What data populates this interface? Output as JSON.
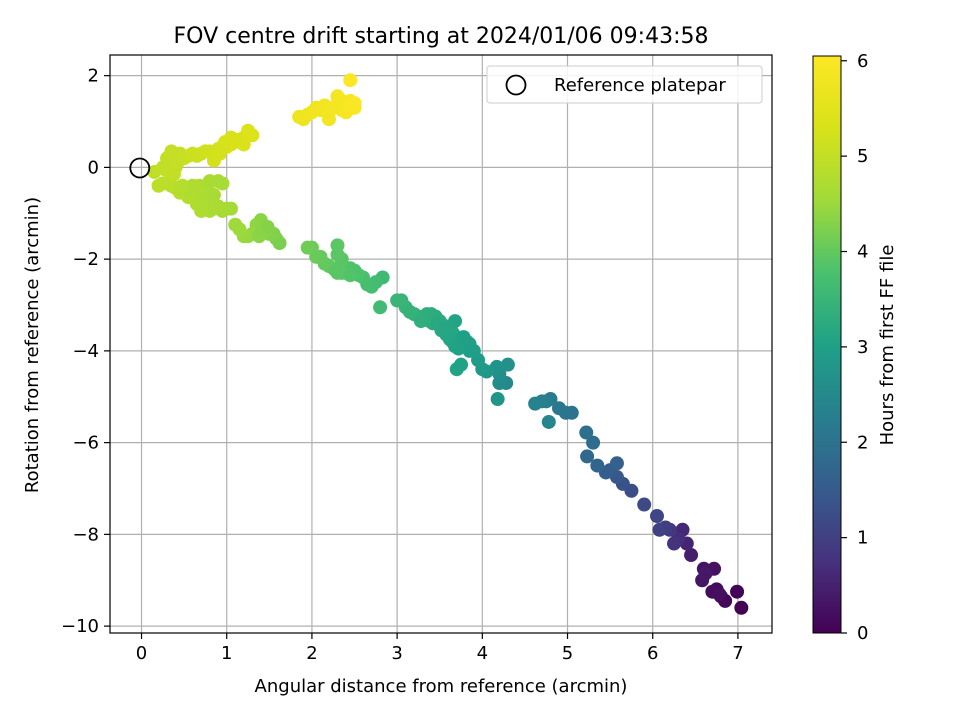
{
  "chart_data": {
    "type": "scatter",
    "title": "FOV centre drift starting at 2024/01/06 09:43:58",
    "xlabel": "Angular distance from reference (arcmin)",
    "ylabel": "Rotation from reference (arcmin)",
    "xlim": [
      -0.37,
      7.4
    ],
    "ylim": [
      -10.15,
      2.45
    ],
    "xticks": [
      0,
      1,
      2,
      3,
      4,
      5,
      6,
      7
    ],
    "yticks": [
      -10,
      -8,
      -6,
      -4,
      -2,
      0,
      2
    ],
    "xtick_labels": [
      "0",
      "1",
      "2",
      "3",
      "4",
      "5",
      "6",
      "7"
    ],
    "ytick_labels": [
      "−10",
      "−8",
      "−6",
      "−4",
      "−2",
      "0",
      "2"
    ],
    "grid": true,
    "colormap": "viridis",
    "colorbar": {
      "label": "Hours from first FF file",
      "range": [
        0,
        6.05
      ],
      "ticks": [
        0,
        1,
        2,
        3,
        4,
        5,
        6
      ],
      "tick_labels": [
        "0",
        "1",
        "2",
        "3",
        "4",
        "5",
        "6"
      ]
    },
    "legend": {
      "placement": "top-right",
      "entries": [
        {
          "label": "Reference platepar",
          "marker": "open-circle"
        }
      ]
    },
    "reference_point": {
      "x": 0,
      "y": 0
    },
    "series": [
      {
        "columns": [
          "x",
          "y",
          "hours"
        ],
        "points": [
          [
            7.04,
            -9.6,
            0.02
          ],
          [
            6.99,
            -9.25,
            0.05
          ],
          [
            6.85,
            -9.45,
            0.08
          ],
          [
            6.8,
            -9.35,
            0.11
          ],
          [
            6.75,
            -9.2,
            0.14
          ],
          [
            6.7,
            -9.25,
            0.17
          ],
          [
            6.78,
            -9.3,
            0.2
          ],
          [
            6.72,
            -8.75,
            0.24
          ],
          [
            6.6,
            -8.75,
            0.28
          ],
          [
            6.58,
            -9.0,
            0.32
          ],
          [
            6.62,
            -8.85,
            0.36
          ],
          [
            6.45,
            -8.45,
            0.45
          ],
          [
            6.4,
            -8.2,
            0.55
          ],
          [
            6.35,
            -7.9,
            0.62
          ],
          [
            6.3,
            -8.1,
            0.7
          ],
          [
            6.25,
            -8.2,
            0.78
          ],
          [
            6.2,
            -7.9,
            0.86
          ],
          [
            6.15,
            -7.85,
            0.95
          ],
          [
            6.08,
            -7.9,
            1.02
          ],
          [
            6.05,
            -7.6,
            1.1
          ],
          [
            5.9,
            -7.35,
            1.18
          ],
          [
            5.75,
            -7.05,
            1.26
          ],
          [
            5.65,
            -6.9,
            1.34
          ],
          [
            5.58,
            -6.75,
            1.42
          ],
          [
            5.5,
            -6.6,
            1.5
          ],
          [
            5.45,
            -6.65,
            1.56
          ],
          [
            5.58,
            -6.45,
            1.62
          ],
          [
            5.35,
            -6.5,
            1.7
          ],
          [
            5.23,
            -6.3,
            1.78
          ],
          [
            5.3,
            -6.0,
            1.85
          ],
          [
            5.22,
            -5.78,
            1.92
          ],
          [
            5.05,
            -5.35,
            2.0
          ],
          [
            4.98,
            -5.35,
            2.05
          ],
          [
            4.9,
            -5.25,
            2.1
          ],
          [
            4.8,
            -5.05,
            2.16
          ],
          [
            4.75,
            -5.1,
            2.22
          ],
          [
            4.7,
            -5.1,
            2.28
          ],
          [
            4.62,
            -5.15,
            2.34
          ],
          [
            4.78,
            -5.55,
            2.4
          ],
          [
            4.28,
            -4.7,
            2.48
          ],
          [
            4.2,
            -4.7,
            2.55
          ],
          [
            4.2,
            -4.5,
            2.62
          ],
          [
            4.3,
            -4.3,
            2.68
          ],
          [
            4.17,
            -4.35,
            2.72
          ],
          [
            4.18,
            -5.05,
            2.76
          ],
          [
            4.05,
            -4.45,
            2.8
          ],
          [
            4.0,
            -4.4,
            2.85
          ],
          [
            3.95,
            -4.2,
            2.9
          ],
          [
            3.9,
            -4.0,
            2.95
          ],
          [
            3.85,
            -3.85,
            3.0
          ],
          [
            3.8,
            -3.8,
            3.03
          ],
          [
            3.75,
            -3.75,
            3.06
          ],
          [
            3.7,
            -3.7,
            3.09
          ],
          [
            3.65,
            -3.6,
            3.12
          ],
          [
            3.6,
            -3.5,
            3.15
          ],
          [
            3.55,
            -3.45,
            3.18
          ],
          [
            3.5,
            -3.35,
            3.21
          ],
          [
            3.45,
            -3.25,
            3.24
          ],
          [
            3.4,
            -3.2,
            3.27
          ],
          [
            3.35,
            -3.2,
            3.3
          ],
          [
            3.3,
            -3.3,
            3.33
          ],
          [
            3.25,
            -3.25,
            3.36
          ],
          [
            3.2,
            -3.2,
            3.39
          ],
          [
            3.15,
            -3.15,
            3.42
          ],
          [
            3.1,
            -3.05,
            3.45
          ],
          [
            3.05,
            -2.9,
            3.48
          ],
          [
            3.0,
            -2.9,
            3.5
          ],
          [
            3.7,
            -4.4,
            3.08
          ],
          [
            3.75,
            -4.3,
            3.05
          ],
          [
            3.85,
            -4.0,
            2.97
          ],
          [
            3.65,
            -3.8,
            3.1
          ],
          [
            3.58,
            -3.65,
            3.13
          ],
          [
            3.52,
            -3.55,
            3.16
          ],
          [
            3.42,
            -3.4,
            3.22
          ],
          [
            3.38,
            -3.35,
            3.26
          ],
          [
            3.32,
            -3.3,
            3.3
          ],
          [
            3.28,
            -3.35,
            3.34
          ],
          [
            3.48,
            -3.4,
            3.2
          ],
          [
            3.62,
            -3.75,
            3.11
          ],
          [
            3.68,
            -3.9,
            3.07
          ],
          [
            3.72,
            -3.95,
            3.04
          ],
          [
            3.78,
            -3.7,
            3.02
          ],
          [
            3.82,
            -3.8,
            3.0
          ],
          [
            3.68,
            -3.35,
            3.1
          ],
          [
            3.56,
            -3.5,
            3.14
          ],
          [
            2.83,
            -2.4,
            3.6
          ],
          [
            2.8,
            -3.05,
            3.62
          ],
          [
            2.75,
            -2.5,
            3.65
          ],
          [
            2.7,
            -2.6,
            3.68
          ],
          [
            2.65,
            -2.55,
            3.71
          ],
          [
            2.6,
            -2.4,
            3.74
          ],
          [
            2.55,
            -2.35,
            3.77
          ],
          [
            2.5,
            -2.3,
            3.8
          ],
          [
            2.45,
            -2.2,
            3.83
          ],
          [
            2.4,
            -2.3,
            3.86
          ],
          [
            2.35,
            -2.3,
            3.89
          ],
          [
            2.3,
            -2.3,
            3.92
          ],
          [
            2.25,
            -2.2,
            3.95
          ],
          [
            2.2,
            -2.15,
            3.98
          ],
          [
            2.35,
            -2.0,
            3.9
          ],
          [
            2.3,
            -1.9,
            3.93
          ],
          [
            2.3,
            -1.7,
            3.94
          ],
          [
            2.15,
            -2.1,
            3.99
          ],
          [
            2.1,
            -1.95,
            4.02
          ],
          [
            2.05,
            -1.95,
            4.05
          ],
          [
            2.0,
            -1.75,
            4.08
          ],
          [
            1.95,
            -1.75,
            4.1
          ],
          [
            2.5,
            -2.25,
            3.82
          ],
          [
            2.45,
            -2.35,
            3.84
          ],
          [
            2.28,
            -2.25,
            3.91
          ],
          [
            1.62,
            -1.65,
            4.2
          ],
          [
            1.58,
            -1.55,
            4.23
          ],
          [
            1.55,
            -1.45,
            4.26
          ],
          [
            1.5,
            -1.45,
            4.29
          ],
          [
            1.45,
            -1.35,
            4.32
          ],
          [
            1.4,
            -1.15,
            4.35
          ],
          [
            1.35,
            -1.25,
            4.38
          ],
          [
            1.3,
            -1.45,
            4.41
          ],
          [
            1.25,
            -1.5,
            4.44
          ],
          [
            1.2,
            -1.5,
            4.47
          ],
          [
            1.15,
            -1.35,
            4.5
          ],
          [
            1.1,
            -1.25,
            4.53
          ],
          [
            1.38,
            -1.5,
            4.36
          ],
          [
            1.42,
            -1.4,
            4.34
          ],
          [
            1.48,
            -1.3,
            4.3
          ],
          [
            1.05,
            -0.9,
            4.58
          ],
          [
            1.0,
            -0.9,
            4.6
          ],
          [
            0.95,
            -0.95,
            4.62
          ],
          [
            0.9,
            -0.85,
            4.64
          ],
          [
            0.85,
            -0.9,
            4.66
          ],
          [
            0.8,
            -0.95,
            4.68
          ],
          [
            0.75,
            -0.85,
            4.7
          ],
          [
            0.7,
            -0.95,
            4.72
          ],
          [
            0.65,
            -0.8,
            4.74
          ],
          [
            0.6,
            -0.65,
            4.76
          ],
          [
            0.55,
            -0.65,
            4.78
          ],
          [
            0.5,
            -0.55,
            4.8
          ],
          [
            0.45,
            -0.55,
            4.82
          ],
          [
            0.4,
            -0.45,
            4.84
          ],
          [
            0.35,
            -0.4,
            4.86
          ],
          [
            0.3,
            -0.35,
            4.88
          ],
          [
            0.25,
            -0.35,
            4.9
          ],
          [
            0.2,
            -0.4,
            4.92
          ],
          [
            0.68,
            -0.4,
            4.73
          ],
          [
            0.8,
            -0.55,
            4.69
          ],
          [
            0.9,
            -0.3,
            4.65
          ],
          [
            0.95,
            -0.35,
            4.63
          ],
          [
            0.8,
            -0.3,
            4.67
          ],
          [
            0.6,
            -0.4,
            4.75
          ],
          [
            0.7,
            -0.6,
            4.71
          ],
          [
            0.75,
            -0.7,
            4.7
          ],
          [
            0.85,
            -0.6,
            4.66
          ],
          [
            0.55,
            -0.45,
            4.77
          ],
          [
            0.48,
            -0.4,
            4.81
          ],
          [
            0.62,
            -0.5,
            4.76
          ],
          [
            0.15,
            -0.1,
            4.95
          ],
          [
            0.25,
            0.0,
            4.97
          ],
          [
            0.3,
            0.05,
            4.99
          ],
          [
            0.35,
            0.1,
            5.0
          ],
          [
            0.3,
            0.2,
            5.01
          ],
          [
            0.4,
            0.25,
            5.03
          ],
          [
            0.45,
            0.3,
            5.05
          ],
          [
            0.5,
            0.2,
            5.07
          ],
          [
            0.55,
            0.25,
            5.09
          ],
          [
            0.6,
            0.3,
            5.11
          ],
          [
            0.65,
            0.25,
            5.13
          ],
          [
            0.7,
            0.3,
            5.15
          ],
          [
            0.75,
            0.35,
            5.17
          ],
          [
            0.8,
            0.35,
            5.19
          ],
          [
            0.85,
            0.25,
            5.21
          ],
          [
            0.9,
            0.4,
            5.23
          ],
          [
            0.95,
            0.45,
            5.25
          ],
          [
            1.0,
            0.45,
            5.27
          ],
          [
            1.05,
            0.5,
            5.29
          ],
          [
            1.1,
            0.55,
            5.31
          ],
          [
            1.15,
            0.6,
            5.33
          ],
          [
            1.2,
            0.65,
            5.35
          ],
          [
            1.25,
            0.8,
            5.37
          ],
          [
            1.2,
            0.5,
            5.34
          ],
          [
            1.3,
            0.7,
            5.38
          ],
          [
            0.35,
            0.35,
            5.02
          ],
          [
            0.4,
            0.0,
            5.04
          ],
          [
            0.28,
            -0.05,
            4.98
          ],
          [
            0.38,
            -0.15,
            5.0
          ],
          [
            0.42,
            0.1,
            5.02
          ],
          [
            0.85,
            0.15,
            5.22
          ],
          [
            0.92,
            0.3,
            5.24
          ],
          [
            0.98,
            0.55,
            5.26
          ],
          [
            1.05,
            0.65,
            5.3
          ],
          [
            1.12,
            0.6,
            5.32
          ],
          [
            1.85,
            1.1,
            5.7
          ],
          [
            1.9,
            1.05,
            5.72
          ],
          [
            1.95,
            1.15,
            5.74
          ],
          [
            2.0,
            1.2,
            5.76
          ],
          [
            2.05,
            1.3,
            5.78
          ],
          [
            2.1,
            1.25,
            5.8
          ],
          [
            2.15,
            1.35,
            5.82
          ],
          [
            2.2,
            1.2,
            5.84
          ],
          [
            2.2,
            1.05,
            5.83
          ],
          [
            2.25,
            1.3,
            5.86
          ],
          [
            2.3,
            1.4,
            5.88
          ],
          [
            2.35,
            1.45,
            5.9
          ],
          [
            2.4,
            1.35,
            5.92
          ],
          [
            2.45,
            1.45,
            5.94
          ],
          [
            2.5,
            1.3,
            5.96
          ],
          [
            2.35,
            1.25,
            5.89
          ],
          [
            2.4,
            1.2,
            5.91
          ],
          [
            2.3,
            1.55,
            5.87
          ],
          [
            2.45,
            1.9,
            6.0
          ],
          [
            2.5,
            1.4,
            5.97
          ]
        ]
      }
    ]
  }
}
